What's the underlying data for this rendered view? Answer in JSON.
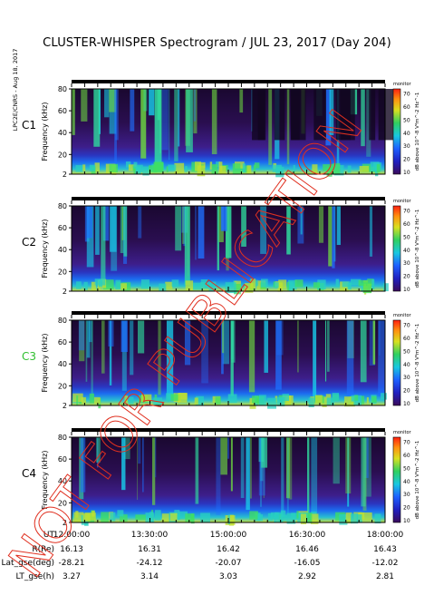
{
  "title": "CLUSTER-WHISPER Spectrogram / JUL 23, 2017 (Day 204)",
  "side_note": "LPC2E/CNRS - Aug 18, 2017",
  "stamp_text": "NOT FOR PUBLICATION",
  "colorbar": {
    "label": "dB above 10^-8 V²m^-2 Hz^-1",
    "top_label": "monitor",
    "ticks": [
      "70",
      "60",
      "50",
      "40",
      "30",
      "20",
      "10"
    ]
  },
  "time_axis": {
    "ticks": [
      "12:00:00",
      "13:30:00",
      "15:00:00",
      "16:30:00",
      "18:00:00"
    ]
  },
  "chart_data": {
    "type": "heatmap",
    "panels": [
      {
        "name": "C1",
        "name_color": "#000000"
      },
      {
        "name": "C2",
        "name_color": "#000000"
      },
      {
        "name": "C3",
        "name_color": "#2fbf2f"
      },
      {
        "name": "C4",
        "name_color": "#000000"
      }
    ],
    "ylabel": "Frequency (kHz)",
    "yticks": [
      "80",
      "60",
      "40",
      "20",
      "2"
    ],
    "ylim": [
      2,
      80
    ],
    "x_range": [
      "12:00:00",
      "18:00:00"
    ],
    "colorbar_range": [
      10,
      70
    ]
  },
  "orbit_table": {
    "rows": [
      {
        "label": "UT",
        "values": [
          "12:00:00",
          "13:30:00",
          "15:00:00",
          "16:30:00",
          "18:00:00"
        ]
      },
      {
        "label": "R(Re)",
        "values": [
          "16.13",
          "16.31",
          "16.42",
          "16.46",
          "16.43"
        ]
      },
      {
        "label": "Lat_gse(deg)",
        "values": [
          "-28.21",
          "-24.12",
          "-20.07",
          "-16.05",
          "-12.02"
        ]
      },
      {
        "label": "LT_gse(h)",
        "values": [
          "3.27",
          "3.14",
          "3.03",
          "2.92",
          "2.81"
        ]
      }
    ]
  }
}
